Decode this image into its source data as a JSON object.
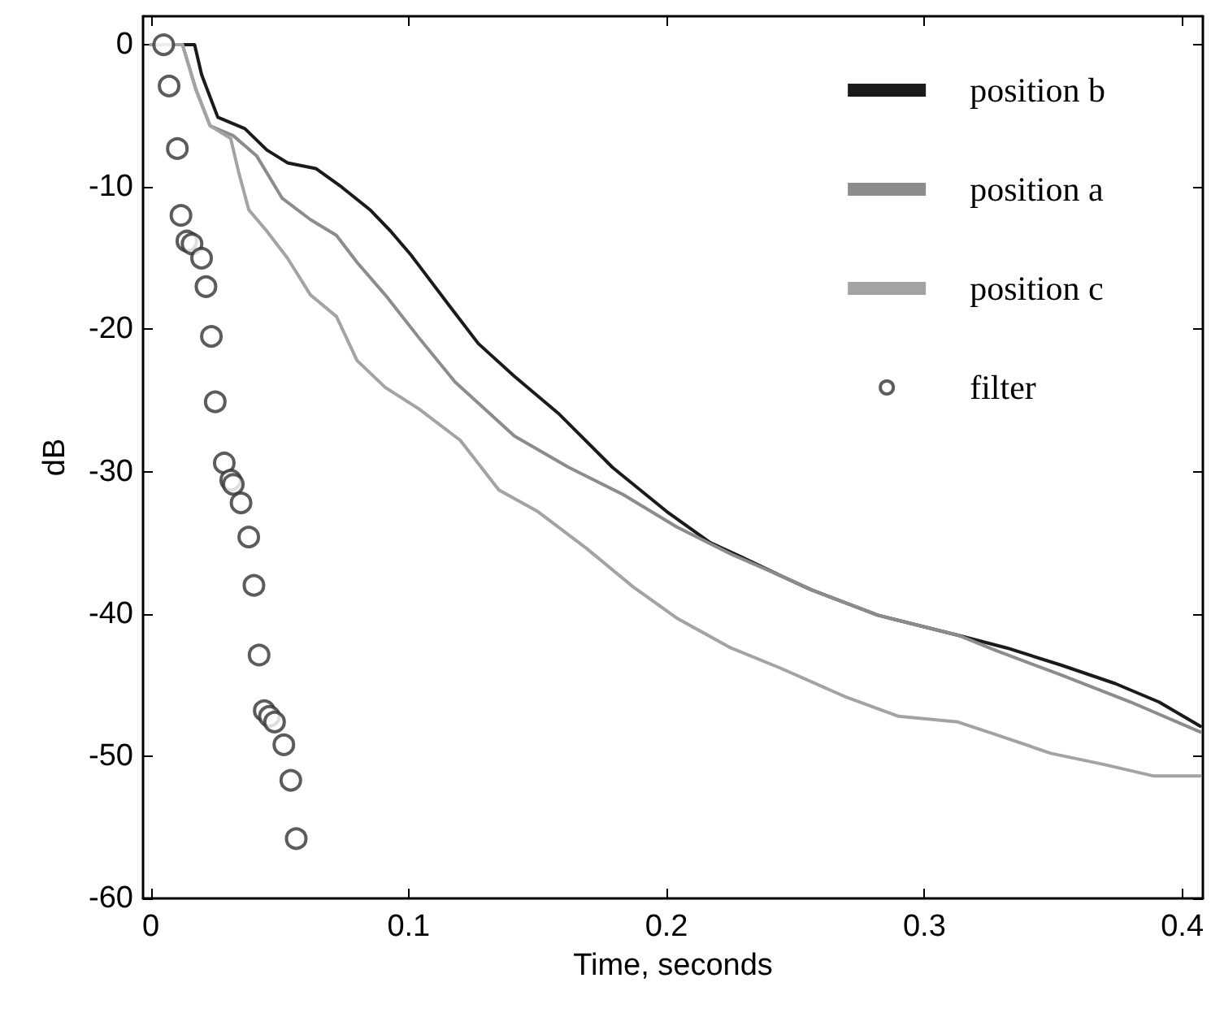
{
  "chart_data": {
    "type": "line",
    "xlabel": "Time, seconds",
    "ylabel": "dB",
    "xlim": [
      -0.003,
      0.408
    ],
    "xticks": [
      0,
      {
        "value": 0.1,
        "label": "0.1"
      },
      {
        "value": 0.2,
        "label": "0.2"
      },
      {
        "value": 0.3,
        "label": "0.3"
      },
      {
        "value": 0.4,
        "label": "0.4"
      }
    ],
    "ylim": [
      -60,
      2
    ],
    "yticks": [
      -60,
      -50,
      -40,
      -30,
      -20,
      -10,
      0
    ],
    "grid": false,
    "legend": "top right",
    "line_style": "solid",
    "series": [
      {
        "name": "position b",
        "color": "#1a1a1a",
        "marker": "none",
        "x": [
          0,
          0.017,
          0.0197,
          0.026,
          0.0365,
          0.045,
          0.053,
          0.064,
          0.074,
          0.085,
          0.093,
          0.101,
          0.116,
          0.127,
          0.141,
          0.158,
          0.179,
          0.2,
          0.217,
          0.229,
          0.244,
          0.256,
          0.282,
          0.313,
          0.332,
          0.353,
          0.374,
          0.391,
          0.407
        ],
        "values": [
          0,
          0,
          -2.1,
          -5.1,
          -5.9,
          -7.4,
          -8.3,
          -8.7,
          -10,
          -11.6,
          -13.1,
          -14.8,
          -18.4,
          -21,
          -23.3,
          -25.9,
          -29.7,
          -32.8,
          -35,
          -36,
          -37.3,
          -38.3,
          -40.1,
          -41.5,
          -42.4,
          -43.6,
          -44.9,
          -46.2,
          -47.9
        ]
      },
      {
        "name": "position a",
        "color": "#8c8c8c",
        "marker": "none",
        "x": [
          0,
          0.0123,
          0.0176,
          0.023,
          0.032,
          0.041,
          0.051,
          0.062,
          0.072,
          0.08,
          0.091,
          0.104,
          0.118,
          0.141,
          0.162,
          0.183,
          0.204,
          0.225,
          0.244,
          0.256,
          0.282,
          0.313,
          0.328,
          0.353,
          0.38,
          0.407
        ],
        "values": [
          0,
          0,
          -3.2,
          -5.7,
          -6.4,
          -7.8,
          -10.8,
          -12.3,
          -13.4,
          -15.3,
          -17.6,
          -20.6,
          -23.7,
          -27.5,
          -29.7,
          -31.6,
          -33.9,
          -35.8,
          -37.3,
          -38.3,
          -40.1,
          -41.5,
          -42.6,
          -44.3,
          -46.2,
          -48.3
        ]
      },
      {
        "name": "position c",
        "color": "#a3a3a3",
        "marker": "none",
        "x": [
          0,
          0.0123,
          0.0176,
          0.023,
          0.031,
          0.034,
          0.038,
          0.045,
          0.053,
          0.062,
          0.072,
          0.08,
          0.091,
          0.104,
          0.12,
          0.135,
          0.15,
          0.169,
          0.187,
          0.204,
          0.225,
          0.244,
          0.269,
          0.29,
          0.313,
          0.328,
          0.349,
          0.37,
          0.389,
          0.407
        ],
        "values": [
          0,
          0,
          -3.2,
          -5.7,
          -6.6,
          -8.9,
          -11.6,
          -13.1,
          -15,
          -17.6,
          -19.1,
          -22.2,
          -24.1,
          -25.6,
          -27.8,
          -31.3,
          -32.8,
          -35.4,
          -38.1,
          -40.3,
          -42.4,
          -43.8,
          -45.8,
          -47.2,
          -47.6,
          -48.5,
          -49.8,
          -50.6,
          -51.4,
          -51.4
        ]
      },
      {
        "name": "filter",
        "type": "scatter",
        "color": "#333333",
        "marker": "circle",
        "x": [
          0.005,
          0.0071,
          0.0103,
          0.0117,
          0.014,
          0.016,
          0.0197,
          0.0214,
          0.0235,
          0.025,
          0.0285,
          0.031,
          0.032,
          0.035,
          0.038,
          0.04,
          0.042,
          0.044,
          0.046,
          0.048,
          0.0516,
          0.0543,
          0.0564
        ],
        "values": [
          0,
          -2.9,
          -7.3,
          -12,
          -13.8,
          -14,
          -15,
          -17,
          -20.5,
          -25.1,
          -29.4,
          -30.6,
          -30.9,
          -32.2,
          -34.6,
          -38,
          -42.9,
          -46.8,
          -47.2,
          -47.6,
          -49.2,
          -51.7,
          -55.8
        ]
      }
    ]
  }
}
